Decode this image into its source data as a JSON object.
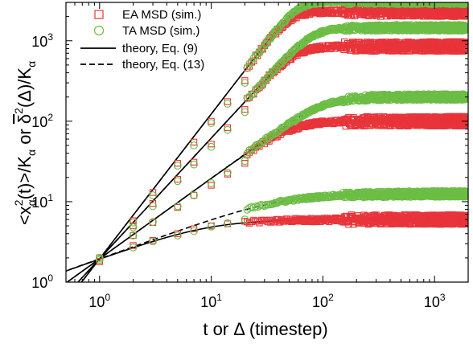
{
  "chart_data": {
    "type": "scatter",
    "title": "",
    "x_scale": "log",
    "y_scale": "log",
    "xlim": [
      0.5,
      2000
    ],
    "ylim": [
      1,
      3000
    ],
    "xlabel": {
      "prefix": "t or ",
      "symbol": "Δ",
      "suffix": " (timestep)"
    },
    "ylabel": {
      "part1": "<x",
      "sub1": "α",
      "sup1": "2",
      "part2": "(t)>/K",
      "sub2": "α",
      "part3": " or ",
      "delta_bar": "δ",
      "sup2": "2",
      "part4": "(",
      "delta": "Δ",
      "part5": ")/K",
      "sub3": "α"
    },
    "x_ticks": [
      {
        "value": 1,
        "base": "10",
        "exp": "0"
      },
      {
        "value": 10,
        "base": "10",
        "exp": "1"
      },
      {
        "value": 100,
        "base": "10",
        "exp": "2"
      },
      {
        "value": 1000,
        "base": "10",
        "exp": "3"
      }
    ],
    "y_ticks": [
      {
        "value": 1,
        "base": "10",
        "exp": "0"
      },
      {
        "value": 10,
        "base": "10",
        "exp": "1"
      },
      {
        "value": 100,
        "base": "10",
        "exp": "2"
      },
      {
        "value": 1000,
        "base": "10",
        "exp": "3"
      }
    ],
    "grid": false,
    "legend_position": "top-left",
    "legend": [
      {
        "label": "EA MSD (sim.)",
        "marker": "square",
        "color": "#e8343a"
      },
      {
        "label": "TA MSD (sim.)",
        "marker": "circle",
        "color": "#6cbd45"
      },
      {
        "label": "theory, Eq. (9)",
        "line": "solid",
        "color": "#000000"
      },
      {
        "label": "theory, Eq. (13)",
        "line": "dashed",
        "color": "#000000"
      }
    ],
    "series": [
      {
        "kind": "EA",
        "alpha": 0.5,
        "plateau": 6.0,
        "early_points": [
          [
            1,
            2.0
          ],
          [
            2,
            2.85
          ],
          [
            3,
            3.3
          ],
          [
            5,
            4.0
          ],
          [
            7,
            4.6
          ],
          [
            10,
            5.0
          ],
          [
            14,
            5.3
          ],
          [
            20,
            5.7
          ]
        ],
        "marker": "square",
        "color": "#e8343a"
      },
      {
        "kind": "EA",
        "alpha": 1.0,
        "plateau": 100,
        "early_points": [
          [
            1,
            1.8
          ],
          [
            2,
            3.8
          ],
          [
            3,
            5.5
          ],
          [
            5,
            8.5
          ],
          [
            7,
            12
          ],
          [
            10,
            16
          ],
          [
            14,
            22
          ],
          [
            20,
            30
          ]
        ],
        "marker": "square",
        "color": "#e8343a"
      },
      {
        "kind": "EA",
        "alpha": 1.5,
        "plateau": 850,
        "early_points": [
          [
            1,
            1.8
          ],
          [
            2,
            5.0
          ],
          [
            3,
            9.5
          ],
          [
            5,
            19
          ],
          [
            7,
            31
          ],
          [
            10,
            52
          ],
          [
            14,
            83
          ],
          [
            20,
            140
          ]
        ],
        "marker": "square",
        "color": "#e8343a"
      },
      {
        "kind": "EA",
        "alpha": 1.8,
        "plateau": 2300,
        "early_points": [
          [
            1,
            2.0
          ],
          [
            2,
            5.8
          ],
          [
            3,
            13
          ],
          [
            5,
            30
          ],
          [
            7,
            55
          ],
          [
            10,
            100
          ],
          [
            14,
            175
          ],
          [
            20,
            320
          ]
        ],
        "marker": "square",
        "color": "#e8343a"
      },
      {
        "kind": "TA",
        "alpha": 0.5,
        "plateau": 12.5,
        "early_points": [
          [
            1,
            2.0
          ],
          [
            2,
            2.7
          ],
          [
            3,
            3.2
          ],
          [
            5,
            3.8
          ],
          [
            7,
            4.3
          ],
          [
            10,
            4.9
          ],
          [
            14,
            5.4
          ],
          [
            20,
            6.0
          ]
        ],
        "marker": "circle",
        "color": "#6cbd45"
      },
      {
        "kind": "TA",
        "alpha": 1.0,
        "plateau": 200,
        "early_points": [
          [
            1,
            1.9
          ],
          [
            2,
            3.8
          ],
          [
            3,
            5.6
          ],
          [
            5,
            8.8
          ],
          [
            7,
            12
          ],
          [
            10,
            17
          ],
          [
            14,
            23
          ],
          [
            20,
            32
          ]
        ],
        "marker": "circle",
        "color": "#6cbd45"
      },
      {
        "kind": "TA",
        "alpha": 1.5,
        "plateau": 1450,
        "early_points": [
          [
            1,
            1.9
          ],
          [
            2,
            4.8
          ],
          [
            3,
            8.8
          ],
          [
            5,
            18
          ],
          [
            7,
            29
          ],
          [
            10,
            48
          ],
          [
            14,
            78
          ],
          [
            20,
            130
          ]
        ],
        "marker": "circle",
        "color": "#6cbd45"
      },
      {
        "kind": "TA",
        "alpha": 1.8,
        "plateau": 3100,
        "early_points": [
          [
            1,
            2.0
          ],
          [
            2,
            5.5
          ],
          [
            3,
            12
          ],
          [
            5,
            28
          ],
          [
            7,
            50
          ],
          [
            10,
            95
          ],
          [
            14,
            165
          ],
          [
            20,
            300
          ]
        ],
        "marker": "circle",
        "color": "#6cbd45"
      }
    ],
    "theory_curves": [
      {
        "equation": "Eq. (9)",
        "style": "solid",
        "alpha": 0.5,
        "plateau": 6.0
      },
      {
        "equation": "Eq. (9)",
        "style": "solid",
        "alpha": 1.0,
        "plateau": 100
      },
      {
        "equation": "Eq. (9)",
        "style": "solid",
        "alpha": 1.5,
        "plateau": 850
      },
      {
        "equation": "Eq. (9)",
        "style": "solid",
        "alpha": 1.8,
        "plateau": 2300
      },
      {
        "equation": "Eq. (13)",
        "style": "dashed",
        "alpha": 0.5,
        "plateau": 12.5
      },
      {
        "equation": "Eq. (13)",
        "style": "dashed",
        "alpha": 1.0,
        "plateau": 200
      },
      {
        "equation": "Eq. (13)",
        "style": "dashed",
        "alpha": 1.5,
        "plateau": 1450
      },
      {
        "equation": "Eq. (13)",
        "style": "dashed",
        "alpha": 1.8,
        "plateau": 3100
      }
    ]
  }
}
